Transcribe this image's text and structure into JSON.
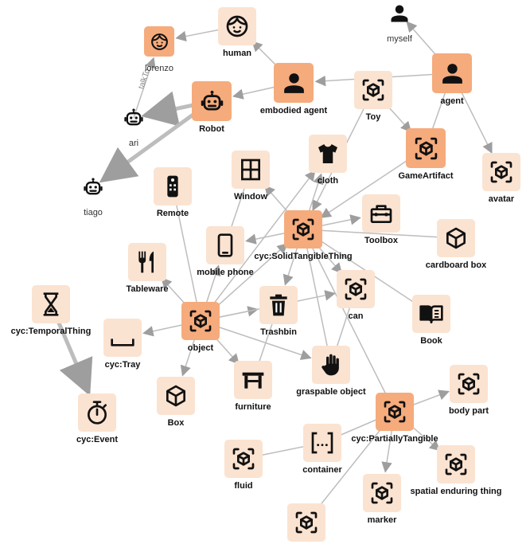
{
  "colors": {
    "light_fill": "#fbe3d1",
    "dark_fill": "#f5ab7c",
    "icon": "#111111",
    "edge": "#bdbdbd",
    "arrow": "#9e9e9e"
  },
  "nodes": [
    {
      "id": "lorenzo",
      "label": "lorenzo",
      "icon": "face-icon",
      "style": "dark",
      "plain": true
    },
    {
      "id": "human",
      "label": "human",
      "icon": "face-icon",
      "style": "light"
    },
    {
      "id": "myself",
      "label": "myself",
      "icon": "person-icon",
      "style": "none",
      "plain": true
    },
    {
      "id": "agent",
      "label": "agent",
      "icon": "person-icon",
      "style": "dark"
    },
    {
      "id": "embodied_agent",
      "label": "embodied agent",
      "icon": "person-icon",
      "style": "dark"
    },
    {
      "id": "toy",
      "label": "Toy",
      "icon": "cube-icon",
      "style": "light"
    },
    {
      "id": "robot",
      "label": "Robot",
      "icon": "robot-icon",
      "style": "dark"
    },
    {
      "id": "ari",
      "label": "ari",
      "icon": "robot-icon",
      "style": "none",
      "plain": true
    },
    {
      "id": "tiago",
      "label": "tiago",
      "icon": "robot-icon",
      "style": "none",
      "plain": true
    },
    {
      "id": "gameartifact",
      "label": "GameArtifact",
      "icon": "cube-icon",
      "style": "dark"
    },
    {
      "id": "avatar",
      "label": "avatar",
      "icon": "cube-icon",
      "style": "light"
    },
    {
      "id": "cloth",
      "label": "cloth",
      "icon": "shirt-icon",
      "style": "light"
    },
    {
      "id": "window",
      "label": "Window",
      "icon": "window-icon",
      "style": "light"
    },
    {
      "id": "remote",
      "label": "Remote",
      "icon": "remote-icon",
      "style": "light"
    },
    {
      "id": "toolbox",
      "label": "Toolbox",
      "icon": "toolbox-icon",
      "style": "light"
    },
    {
      "id": "cardboard_box",
      "label": "cardboard box",
      "icon": "plain-cube-icon",
      "style": "light"
    },
    {
      "id": "solid",
      "label": "cyc:SolidTangibleThing",
      "icon": "cube-icon",
      "style": "dark"
    },
    {
      "id": "mobile_phone",
      "label": "mobile phone",
      "icon": "phone-icon",
      "style": "light"
    },
    {
      "id": "tableware",
      "label": "Tableware",
      "icon": "cutlery-icon",
      "style": "light"
    },
    {
      "id": "trashbin",
      "label": "Trashbin",
      "icon": "trash-icon",
      "style": "light"
    },
    {
      "id": "can",
      "label": "can",
      "icon": "cube-icon",
      "style": "light"
    },
    {
      "id": "book",
      "label": "Book",
      "icon": "book-icon",
      "style": "light"
    },
    {
      "id": "temporal",
      "label": "cyc:TemporalThing",
      "icon": "hourglass-icon",
      "style": "light"
    },
    {
      "id": "object",
      "label": "object",
      "icon": "cube-icon",
      "style": "dark"
    },
    {
      "id": "tray",
      "label": "cyc:Tray",
      "icon": "tray-icon",
      "style": "light"
    },
    {
      "id": "graspable",
      "label": "graspable object",
      "icon": "hand-icon",
      "style": "light"
    },
    {
      "id": "furniture",
      "label": "furniture",
      "icon": "table-icon",
      "style": "light"
    },
    {
      "id": "box",
      "label": "Box",
      "icon": "plain-cube-icon",
      "style": "light"
    },
    {
      "id": "event",
      "label": "cyc:Event",
      "icon": "timer-icon",
      "style": "light"
    },
    {
      "id": "partial",
      "label": "cyc:PartiallyTangible",
      "icon": "cube-icon",
      "style": "dark"
    },
    {
      "id": "body_part",
      "label": "body part",
      "icon": "cube-icon",
      "style": "light"
    },
    {
      "id": "container",
      "label": "container",
      "icon": "brackets-icon",
      "style": "light"
    },
    {
      "id": "fluid",
      "label": "fluid",
      "icon": "cube-icon",
      "style": "light"
    },
    {
      "id": "spatial",
      "label": "spatial enduring thing",
      "icon": "cube-icon",
      "style": "light"
    },
    {
      "id": "marker",
      "label": "marker",
      "icon": "cube-icon",
      "style": "light"
    },
    {
      "id": "unnamed",
      "label": "",
      "icon": "cube-icon",
      "style": "light"
    }
  ],
  "edges": [
    {
      "from": "human",
      "to": "lorenzo"
    },
    {
      "from": "embodied_agent",
      "to": "human"
    },
    {
      "from": "myself",
      "to": "agent",
      "arrow": "from"
    },
    {
      "from": "agent",
      "to": "embodied_agent"
    },
    {
      "from": "agent",
      "to": "avatar"
    },
    {
      "from": "embodied_agent",
      "to": "robot"
    },
    {
      "from": "robot",
      "to": "ari",
      "kind": "thick"
    },
    {
      "from": "robot",
      "to": "tiago",
      "kind": "thick"
    },
    {
      "from": "ari",
      "to": "lorenzo",
      "label": "talkTo"
    },
    {
      "from": "toy",
      "to": "gameartifact"
    },
    {
      "from": "toy",
      "to": "solid"
    },
    {
      "from": "agent",
      "to": "gameartifact",
      "arrow": "none"
    },
    {
      "from": "gameartifact",
      "to": "solid"
    },
    {
      "from": "solid",
      "to": "cloth"
    },
    {
      "from": "solid",
      "to": "window"
    },
    {
      "from": "solid",
      "to": "toolbox"
    },
    {
      "from": "solid",
      "to": "cardboard_box",
      "arrow": "none"
    },
    {
      "from": "solid",
      "to": "mobile_phone"
    },
    {
      "from": "solid",
      "to": "trashbin"
    },
    {
      "from": "solid",
      "to": "can"
    },
    {
      "from": "solid",
      "to": "book",
      "arrow": "none"
    },
    {
      "from": "solid",
      "to": "graspable",
      "arrow": "none"
    },
    {
      "from": "solid",
      "to": "partial",
      "arrow": "none"
    },
    {
      "from": "object",
      "to": "solid"
    },
    {
      "from": "object",
      "to": "remote",
      "arrow": "none"
    },
    {
      "from": "object",
      "to": "tableware"
    },
    {
      "from": "object",
      "to": "mobile_phone"
    },
    {
      "from": "object",
      "to": "trashbin"
    },
    {
      "from": "object",
      "to": "tray"
    },
    {
      "from": "object",
      "to": "box"
    },
    {
      "from": "object",
      "to": "furniture"
    },
    {
      "from": "object",
      "to": "graspable"
    },
    {
      "from": "object",
      "to": "can"
    },
    {
      "from": "object",
      "to": "cloth"
    },
    {
      "from": "mobile_phone",
      "to": "window",
      "arrow": "none"
    },
    {
      "from": "graspable",
      "to": "can",
      "arrow": "none"
    },
    {
      "from": "furniture",
      "to": "trashbin",
      "arrow": "none"
    },
    {
      "from": "partial",
      "to": "body_part"
    },
    {
      "from": "partial",
      "to": "spatial"
    },
    {
      "from": "partial",
      "to": "marker"
    },
    {
      "from": "partial",
      "to": "container",
      "arrow": "none"
    },
    {
      "from": "container",
      "to": "fluid",
      "arrow": "none"
    },
    {
      "from": "partial",
      "to": "unnamed",
      "arrow": "none"
    },
    {
      "from": "temporal",
      "to": "event",
      "kind": "thick"
    }
  ]
}
